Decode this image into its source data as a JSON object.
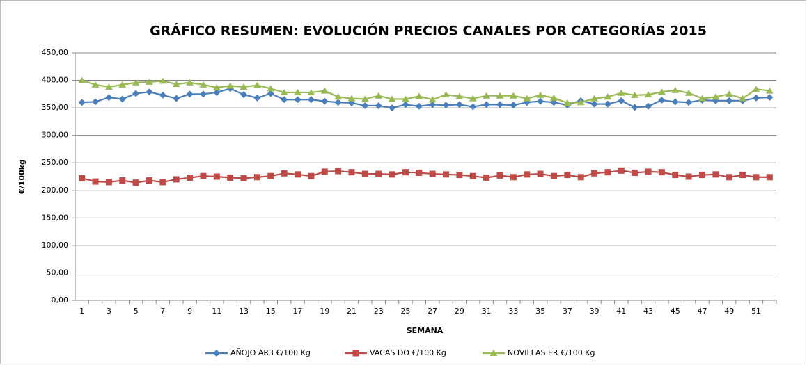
{
  "chart_data": {
    "type": "line",
    "title": "GRÁFICO RESUMEN: EVOLUCIÓN PRECIOS CANALES POR CATEGORÍAS 2015",
    "x_label": "SEMANA",
    "y_label": "€/100kg",
    "categories": [
      1,
      null,
      3,
      null,
      5,
      null,
      7,
      null,
      9,
      null,
      11,
      null,
      13,
      null,
      15,
      null,
      17,
      null,
      19,
      null,
      21,
      null,
      23,
      null,
      25,
      null,
      27,
      null,
      29,
      null,
      31,
      null,
      33,
      null,
      35,
      null,
      37,
      null,
      39,
      null,
      41,
      null,
      43,
      null,
      45,
      null,
      47,
      null,
      49,
      null,
      51,
      null
    ],
    "ylim": [
      0,
      450
    ],
    "yticks": [
      {
        "value": 0,
        "label": "0,00"
      },
      {
        "value": 50,
        "label": "50,00"
      },
      {
        "value": 100,
        "label": "100,00"
      },
      {
        "value": 150,
        "label": "150,00"
      },
      {
        "value": 200,
        "label": "200,00"
      },
      {
        "value": 250,
        "label": "250,00"
      },
      {
        "value": 300,
        "label": "300,00"
      },
      {
        "value": 350,
        "label": "350,00"
      },
      {
        "value": 400,
        "label": "400,00"
      },
      {
        "value": 450,
        "label": "450,00"
      }
    ],
    "grid": true,
    "legend": "bottom",
    "series": [
      {
        "name": "AÑOJO AR3 €/100 Kg",
        "color": "#4a7ebb",
        "marker": "diamond",
        "values": [
          360,
          361,
          369,
          366,
          376,
          379,
          373,
          367,
          375,
          375,
          378,
          385,
          374,
          368,
          376,
          365,
          365,
          365,
          362,
          360,
          359,
          354,
          354,
          350,
          356,
          353,
          356,
          355,
          356,
          352,
          356,
          356,
          355,
          360,
          362,
          360,
          355,
          363,
          357,
          357,
          363,
          351,
          353,
          364,
          361,
          360,
          364,
          363,
          363,
          363,
          368,
          369
        ]
      },
      {
        "name": "VACAS DO €/100 Kg",
        "color": "#be4b48",
        "marker": "square",
        "values": [
          222,
          216,
          215,
          218,
          214,
          218,
          215,
          220,
          223,
          226,
          225,
          223,
          222,
          224,
          226,
          231,
          229,
          226,
          234,
          235,
          233,
          230,
          230,
          229,
          233,
          232,
          230,
          229,
          228,
          226,
          223,
          227,
          224,
          229,
          230,
          226,
          228,
          224,
          231,
          233,
          236,
          232,
          234,
          233,
          228,
          225,
          228,
          229,
          224,
          228,
          224,
          224
        ]
      },
      {
        "name": "NOVILLAS ER €/100 Kg",
        "color": "#98b954",
        "marker": "triangle",
        "values": [
          400,
          392,
          388,
          392,
          396,
          397,
          399,
          393,
          396,
          392,
          387,
          390,
          388,
          391,
          385,
          378,
          378,
          378,
          381,
          370,
          367,
          366,
          372,
          366,
          366,
          371,
          365,
          374,
          371,
          367,
          372,
          372,
          372,
          367,
          373,
          368,
          359,
          360,
          367,
          370,
          377,
          373,
          374,
          379,
          382,
          377,
          367,
          370,
          375,
          367,
          384,
          381
        ]
      }
    ]
  }
}
